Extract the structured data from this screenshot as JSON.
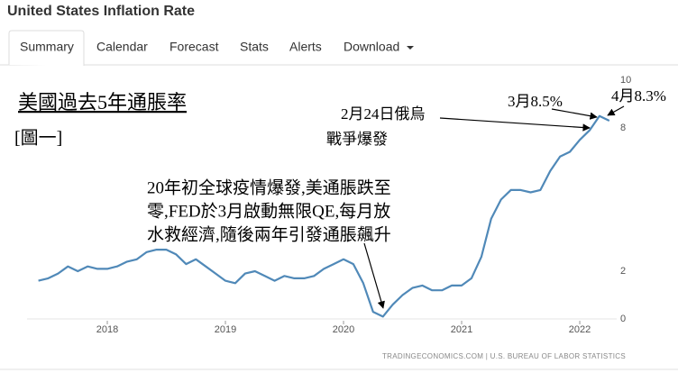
{
  "header": {
    "title": "United States Inflation Rate"
  },
  "tabs": [
    "Summary",
    "Calendar",
    "Forecast",
    "Stats",
    "Alerts",
    "Download"
  ],
  "chart_data": {
    "type": "line",
    "categories": [
      null,
      null,
      null,
      null,
      null,
      null,
      null,
      "2018",
      null,
      null,
      null,
      null,
      null,
      null,
      null,
      null,
      null,
      null,
      null,
      "2019",
      null,
      null,
      null,
      null,
      null,
      null,
      null,
      null,
      null,
      null,
      null,
      "2020",
      null,
      null,
      null,
      null,
      null,
      null,
      null,
      null,
      null,
      null,
      null,
      "2021",
      null,
      null,
      null,
      null,
      null,
      null,
      null,
      null,
      null,
      null,
      null,
      "2022",
      null,
      null,
      null
    ],
    "series": [
      {
        "name": "Inflation Rate",
        "color": "#5089b8",
        "values": [
          1.6,
          1.7,
          1.9,
          2.2,
          2.0,
          2.2,
          2.1,
          2.1,
          2.2,
          2.4,
          2.5,
          2.8,
          2.9,
          2.9,
          2.7,
          2.3,
          2.5,
          2.2,
          1.9,
          1.6,
          1.5,
          1.9,
          2.0,
          1.8,
          1.6,
          1.8,
          1.7,
          1.7,
          1.8,
          2.1,
          2.3,
          2.5,
          2.3,
          1.5,
          0.3,
          0.1,
          0.6,
          1.0,
          1.3,
          1.4,
          1.2,
          1.2,
          1.4,
          1.4,
          1.7,
          2.6,
          4.2,
          5.0,
          5.4,
          5.4,
          5.3,
          5.4,
          6.2,
          6.8,
          7.0,
          7.5,
          7.9,
          8.5,
          8.3
        ]
      }
    ],
    "ylim": [
      0,
      10
    ],
    "yticks": [
      0,
      2,
      8,
      10
    ],
    "grid": false,
    "annotations": [
      "美國過去5年通脹率",
      "[圖一]",
      "2月24日俄烏",
      "戰爭爆發",
      "3月8.5%",
      "4月8.3%",
      "20年初全球疫情爆發,美通脹跌至",
      "零,FED於3月啟動無限QE,每月放",
      "水救經濟,隨後兩年引發通脹飆升"
    ],
    "source": "TRADINGECONOMICS.COM | U.S. BUREAU OF LABOR STATISTICS"
  }
}
